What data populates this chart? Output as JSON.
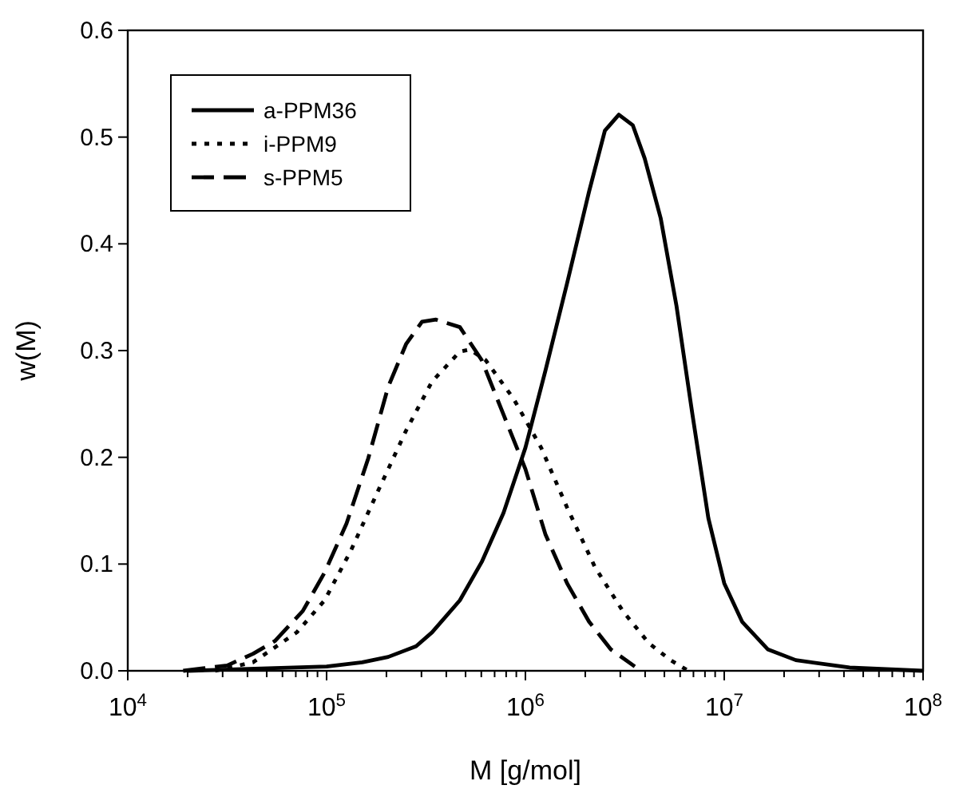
{
  "chart_data": {
    "type": "line",
    "xlabel": "M [g/mol]",
    "ylabel": "w(M)",
    "log": "x",
    "xlim": [
      10000,
      100000000
    ],
    "ylim": [
      0,
      0.6
    ],
    "xticks": [
      {
        "value": 10000,
        "label": "10$^{4}$"
      },
      {
        "value": 20000,
        "label": null
      },
      {
        "value": 30000,
        "label": null
      },
      {
        "value": 40000,
        "label": null
      },
      {
        "value": 50000,
        "label": null
      },
      {
        "value": 60000,
        "label": null
      },
      {
        "value": 70000,
        "label": null
      },
      {
        "value": 80000,
        "label": null
      },
      {
        "value": 90000,
        "label": null
      },
      {
        "value": 100000,
        "label": "10$^{5}$"
      },
      {
        "value": 200000,
        "label": null
      },
      {
        "value": 300000,
        "label": null
      },
      {
        "value": 400000,
        "label": null
      },
      {
        "value": 500000,
        "label": null
      },
      {
        "value": 600000,
        "label": null
      },
      {
        "value": 700000,
        "label": null
      },
      {
        "value": 800000,
        "label": null
      },
      {
        "value": 900000,
        "label": null
      },
      {
        "value": 1000000,
        "label": "10$^{6}$"
      },
      {
        "value": 2000000,
        "label": null
      },
      {
        "value": 3000000,
        "label": null
      },
      {
        "value": 4000000,
        "label": null
      },
      {
        "value": 5000000,
        "label": null
      },
      {
        "value": 6000000,
        "label": null
      },
      {
        "value": 7000000,
        "label": null
      },
      {
        "value": 8000000,
        "label": null
      },
      {
        "value": 9000000,
        "label": null
      },
      {
        "value": 10000000,
        "label": "10$^{7}$"
      },
      {
        "value": 20000000,
        "label": null
      },
      {
        "value": 30000000,
        "label": null
      },
      {
        "value": 40000000,
        "label": null
      },
      {
        "value": 50000000,
        "label": null
      },
      {
        "value": 60000000,
        "label": null
      },
      {
        "value": 70000000,
        "label": null
      },
      {
        "value": 80000000,
        "label": null
      },
      {
        "value": 90000000,
        "label": null
      },
      {
        "value": 100000000,
        "label": "10$^{8}$"
      }
    ],
    "yticks": [
      {
        "value": 0,
        "label": "0.0"
      },
      0.1,
      0.2,
      0.3,
      0.4,
      0.5,
      0.6
    ],
    "grid": false,
    "legend": "top left",
    "marker": "none",
    "series": [
      {
        "name": "a-PPM36",
        "color": "#000000",
        "line_style": "solid",
        "x": [
          20000,
          100000,
          151000,
          204000,
          282000,
          339000,
          468000,
          603000,
          776000,
          1000000,
          1260000,
          1620000,
          2090000,
          2510000,
          2950000,
          3470000,
          3980000,
          4790000,
          5750000,
          6920000,
          8320000,
          10000000,
          12300000,
          16600000,
          22900000,
          42700000,
          100000000
        ],
        "values": [
          0,
          0.004,
          0.008,
          0.013,
          0.023,
          0.036,
          0.066,
          0.102,
          0.148,
          0.209,
          0.281,
          0.363,
          0.449,
          0.506,
          0.521,
          0.511,
          0.48,
          0.424,
          0.342,
          0.24,
          0.143,
          0.082,
          0.046,
          0.02,
          0.01,
          0.003,
          0
        ]
      },
      {
        "name": "i-PPM9",
        "color": "#000000",
        "line_style": "dotted",
        "x": [
          27500,
          42700,
          70800,
          97700,
          132000,
          182000,
          251000,
          339000,
          468000,
          525000,
          631000,
          871000,
          1200000,
          1620000,
          2240000,
          3090000,
          4170000,
          5370000,
          6460000
        ],
        "values": [
          0,
          0.008,
          0.036,
          0.066,
          0.112,
          0.169,
          0.225,
          0.271,
          0.299,
          0.301,
          0.291,
          0.255,
          0.209,
          0.153,
          0.097,
          0.056,
          0.026,
          0.01,
          0.001
        ]
      },
      {
        "name": "s-PPM5",
        "color": "#000000",
        "line_style": "dashed",
        "x": [
          19000,
          31600,
          42700,
          55000,
          75900,
          97700,
          126000,
          162000,
          204000,
          251000,
          302000,
          355000,
          468000,
          603000,
          776000,
          1000000,
          1260000,
          1620000,
          2090000,
          2690000,
          3550000
        ],
        "values": [
          0,
          0.005,
          0.016,
          0.028,
          0.056,
          0.092,
          0.138,
          0.199,
          0.266,
          0.306,
          0.327,
          0.329,
          0.322,
          0.291,
          0.24,
          0.189,
          0.128,
          0.082,
          0.046,
          0.02,
          0.004
        ]
      }
    ]
  }
}
